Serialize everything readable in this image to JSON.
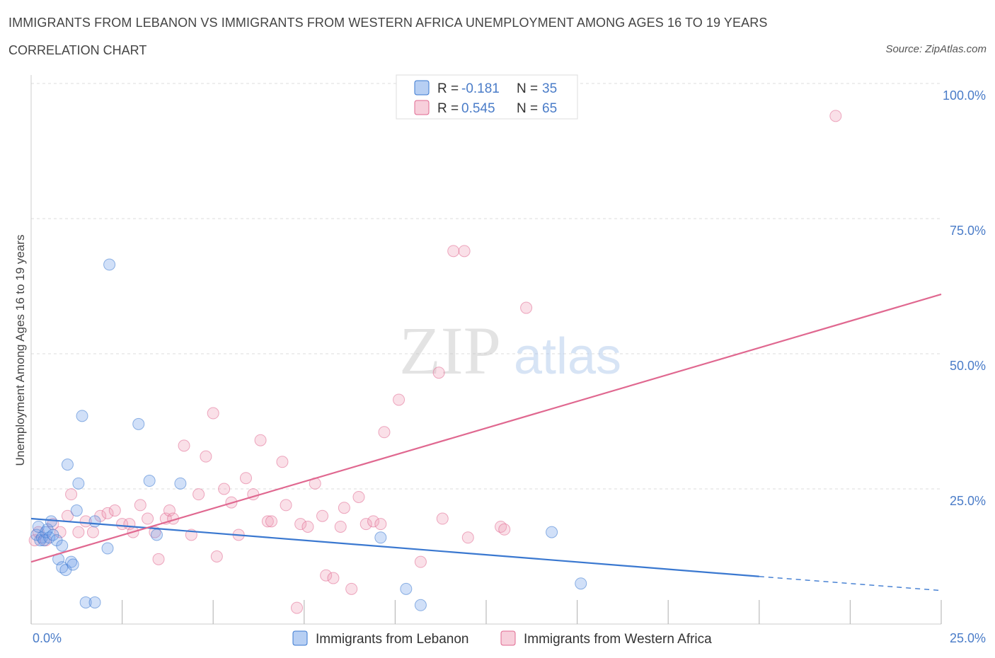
{
  "title": "IMMIGRANTS FROM LEBANON VS IMMIGRANTS FROM WESTERN AFRICA UNEMPLOYMENT AMONG AGES 16 TO 19 YEARS",
  "subtitle": "CORRELATION CHART",
  "source": "Source: ZipAtlas.com",
  "watermark": {
    "zip": "ZIP",
    "atlas": "atlas"
  },
  "colors": {
    "lebanon": "#6fa0e8",
    "lebanon_line": "#3a78d0",
    "western_africa": "#f0a0b8",
    "western_africa_line": "#e06890",
    "axis_text": "#4a7cc8",
    "grid": "#dddddd"
  },
  "legend_top": {
    "lebanon": {
      "r_label": "R = ",
      "r_value": "-0.181",
      "n_label": "N = ",
      "n_value": "35"
    },
    "western_africa": {
      "r_label": "R = ",
      "r_value": "0.545",
      "n_label": "N = ",
      "n_value": "65"
    }
  },
  "legend_bottom": {
    "lebanon": "Immigrants from Lebanon",
    "western_africa": "Immigrants from Western Africa"
  },
  "chart_data": {
    "type": "scatter",
    "xlabel": "",
    "ylabel": "Unemployment Among Ages 16 to 19 years",
    "xlim": [
      0,
      25
    ],
    "ylim": [
      0,
      100
    ],
    "x_tick_labels": [
      {
        "value": 0,
        "label": "0.0%"
      },
      {
        "value": 25,
        "label": "25.0%"
      }
    ],
    "y_tick_labels": [
      {
        "value": 25,
        "label": "25.0%"
      },
      {
        "value": 50,
        "label": "50.0%"
      },
      {
        "value": 75,
        "label": "75.0%"
      },
      {
        "value": 100,
        "label": "100.0%"
      }
    ],
    "grid": true,
    "legend_placement": "top-center",
    "series": [
      {
        "name": "Immigrants from Lebanon",
        "points": [
          [
            0.15,
            16.5
          ],
          [
            0.2,
            18
          ],
          [
            0.25,
            15.5
          ],
          [
            0.3,
            16
          ],
          [
            0.35,
            15.5
          ],
          [
            0.4,
            17
          ],
          [
            0.45,
            17.5
          ],
          [
            0.5,
            16
          ],
          [
            0.55,
            19
          ],
          [
            0.6,
            16.5
          ],
          [
            0.7,
            15.5
          ],
          [
            0.75,
            12
          ],
          [
            0.85,
            14.5
          ],
          [
            0.85,
            10.5
          ],
          [
            0.95,
            10
          ],
          [
            1.0,
            29.5
          ],
          [
            1.1,
            11.5
          ],
          [
            1.15,
            11
          ],
          [
            1.25,
            21
          ],
          [
            1.3,
            26
          ],
          [
            1.4,
            38.5
          ],
          [
            1.5,
            4
          ],
          [
            1.75,
            4
          ],
          [
            1.75,
            19
          ],
          [
            2.1,
            14
          ],
          [
            2.15,
            66.5
          ],
          [
            2.95,
            37
          ],
          [
            3.25,
            26.5
          ],
          [
            3.45,
            16.5
          ],
          [
            4.1,
            26
          ],
          [
            9.6,
            16
          ],
          [
            10.3,
            6.5
          ],
          [
            10.7,
            3.5
          ],
          [
            14.3,
            17
          ],
          [
            15.1,
            7.5
          ]
        ],
        "trend": {
          "x": [
            0,
            20
          ],
          "y": [
            19.5,
            8.8
          ],
          "dashed_to": {
            "x": 25,
            "y": 6.2
          }
        }
      },
      {
        "name": "Immigrants from Western Africa",
        "points": [
          [
            0.1,
            15.5
          ],
          [
            0.2,
            17
          ],
          [
            0.4,
            15.5
          ],
          [
            0.6,
            18.5
          ],
          [
            0.8,
            17
          ],
          [
            1.0,
            20
          ],
          [
            1.1,
            24
          ],
          [
            1.3,
            17
          ],
          [
            1.5,
            19
          ],
          [
            1.7,
            17
          ],
          [
            1.9,
            20
          ],
          [
            2.1,
            20.5
          ],
          [
            2.3,
            21
          ],
          [
            2.5,
            18.5
          ],
          [
            2.7,
            18.5
          ],
          [
            2.8,
            17
          ],
          [
            3.0,
            22
          ],
          [
            3.2,
            19.5
          ],
          [
            3.4,
            17
          ],
          [
            3.5,
            12
          ],
          [
            3.7,
            19.5
          ],
          [
            3.8,
            21
          ],
          [
            3.9,
            19.5
          ],
          [
            4.2,
            33
          ],
          [
            4.4,
            16.5
          ],
          [
            4.6,
            24
          ],
          [
            4.8,
            31
          ],
          [
            5.0,
            39
          ],
          [
            5.1,
            12.5
          ],
          [
            5.3,
            25
          ],
          [
            5.5,
            22.5
          ],
          [
            5.7,
            16.5
          ],
          [
            5.9,
            27
          ],
          [
            6.1,
            24
          ],
          [
            6.3,
            34
          ],
          [
            6.5,
            19
          ],
          [
            6.6,
            19
          ],
          [
            6.9,
            30
          ],
          [
            7.0,
            22
          ],
          [
            7.3,
            3
          ],
          [
            7.4,
            18.5
          ],
          [
            7.6,
            18
          ],
          [
            7.8,
            26
          ],
          [
            8.0,
            20
          ],
          [
            8.1,
            9
          ],
          [
            8.3,
            8.5
          ],
          [
            8.5,
            18
          ],
          [
            8.6,
            21.5
          ],
          [
            8.8,
            6.5
          ],
          [
            9.0,
            23.5
          ],
          [
            9.2,
            18.5
          ],
          [
            9.4,
            19
          ],
          [
            9.6,
            18.5
          ],
          [
            9.7,
            35.5
          ],
          [
            10.1,
            41.5
          ],
          [
            10.7,
            11.5
          ],
          [
            11.2,
            46.5
          ],
          [
            11.3,
            19.5
          ],
          [
            11.6,
            69
          ],
          [
            11.9,
            69
          ],
          [
            12.0,
            16
          ],
          [
            12.9,
            18
          ],
          [
            13.0,
            17.5
          ],
          [
            13.6,
            58.5
          ],
          [
            22.1,
            94
          ]
        ],
        "trend": {
          "x": [
            0,
            25
          ],
          "y": [
            11.5,
            61
          ]
        }
      }
    ]
  }
}
